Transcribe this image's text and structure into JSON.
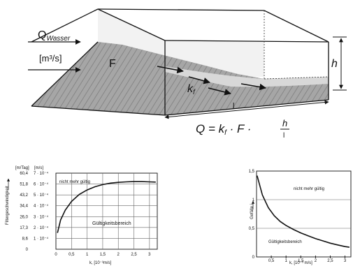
{
  "diagram": {
    "inflow_symbol": "Q",
    "inflow_subscript": "Wasser",
    "inflow_unit": "[m³/s]",
    "area_label": "F",
    "kf_label": "k",
    "kf_subscript": "f",
    "height_label": "h",
    "length_label": "l",
    "formula": {
      "lhs": "Q = k",
      "sub": "f",
      "mid": " · F · ",
      "num": "h",
      "den": "l"
    }
  },
  "chart_data": [
    {
      "type": "line",
      "ylabel": "Filtergeschwindigkeit",
      "xlabel": "k, [10⁻³m/s]",
      "y_col_header_1": "[m/Tag]",
      "y_col_header_2": "[m/s]",
      "y_ticks_mtag": [
        "60,4",
        "51,8",
        "43,2",
        "34,4",
        "26,0",
        "17,3",
        "8,6",
        "0"
      ],
      "y_ticks_ms": [
        "7 · 10⁻⁴",
        "6 · 10⁻⁴",
        "5 · 10⁻⁴",
        "4 · 10⁻⁴",
        "3 · 10⁻⁴",
        "2 · 10⁻⁴",
        "1 · 10⁻⁴"
      ],
      "x_ticks": [
        "0",
        "0,5",
        "1",
        "1,5",
        "2",
        "2,5",
        "3"
      ],
      "xlim": [
        0,
        3.25
      ],
      "ylim": [
        0,
        7
      ],
      "grid": true,
      "region_upper": "nicht mehr gültig",
      "region_lower": "Gültigkeitsbereich",
      "series": [
        {
          "x": [
            0.05,
            0.15,
            0.3,
            0.5,
            0.75,
            1.0,
            1.25,
            1.5,
            1.75,
            2.0,
            2.25,
            2.5,
            2.75,
            3.0,
            3.2
          ],
          "values": [
            1.5,
            2.7,
            3.6,
            4.4,
            5.05,
            5.45,
            5.75,
            5.95,
            6.08,
            6.15,
            6.2,
            6.22,
            6.22,
            6.2,
            6.18
          ]
        }
      ]
    },
    {
      "type": "line",
      "ylabel": "Gefälle i",
      "xlabel": "k, [10⁻³ m/s]",
      "y_ticks": [
        "1,5",
        "1",
        "0,5",
        "0"
      ],
      "x_ticks": [
        "0,5",
        "1",
        "1,5",
        "2",
        "2,5",
        "3"
      ],
      "xlim": [
        0,
        3.2
      ],
      "ylim": [
        0,
        1.5
      ],
      "grid": true,
      "region_upper": "nicht mehr gültig",
      "region_lower": "Gültigkeitsbereich",
      "series": [
        {
          "x": [
            0.02,
            0.2,
            0.4,
            0.6,
            0.8,
            1.0,
            1.25,
            1.5,
            1.75,
            2.0,
            2.25,
            2.5,
            2.75,
            3.0,
            3.15
          ],
          "values": [
            1.42,
            1.08,
            0.86,
            0.72,
            0.62,
            0.55,
            0.48,
            0.42,
            0.37,
            0.32,
            0.28,
            0.24,
            0.21,
            0.18,
            0.17
          ]
        }
      ]
    }
  ]
}
